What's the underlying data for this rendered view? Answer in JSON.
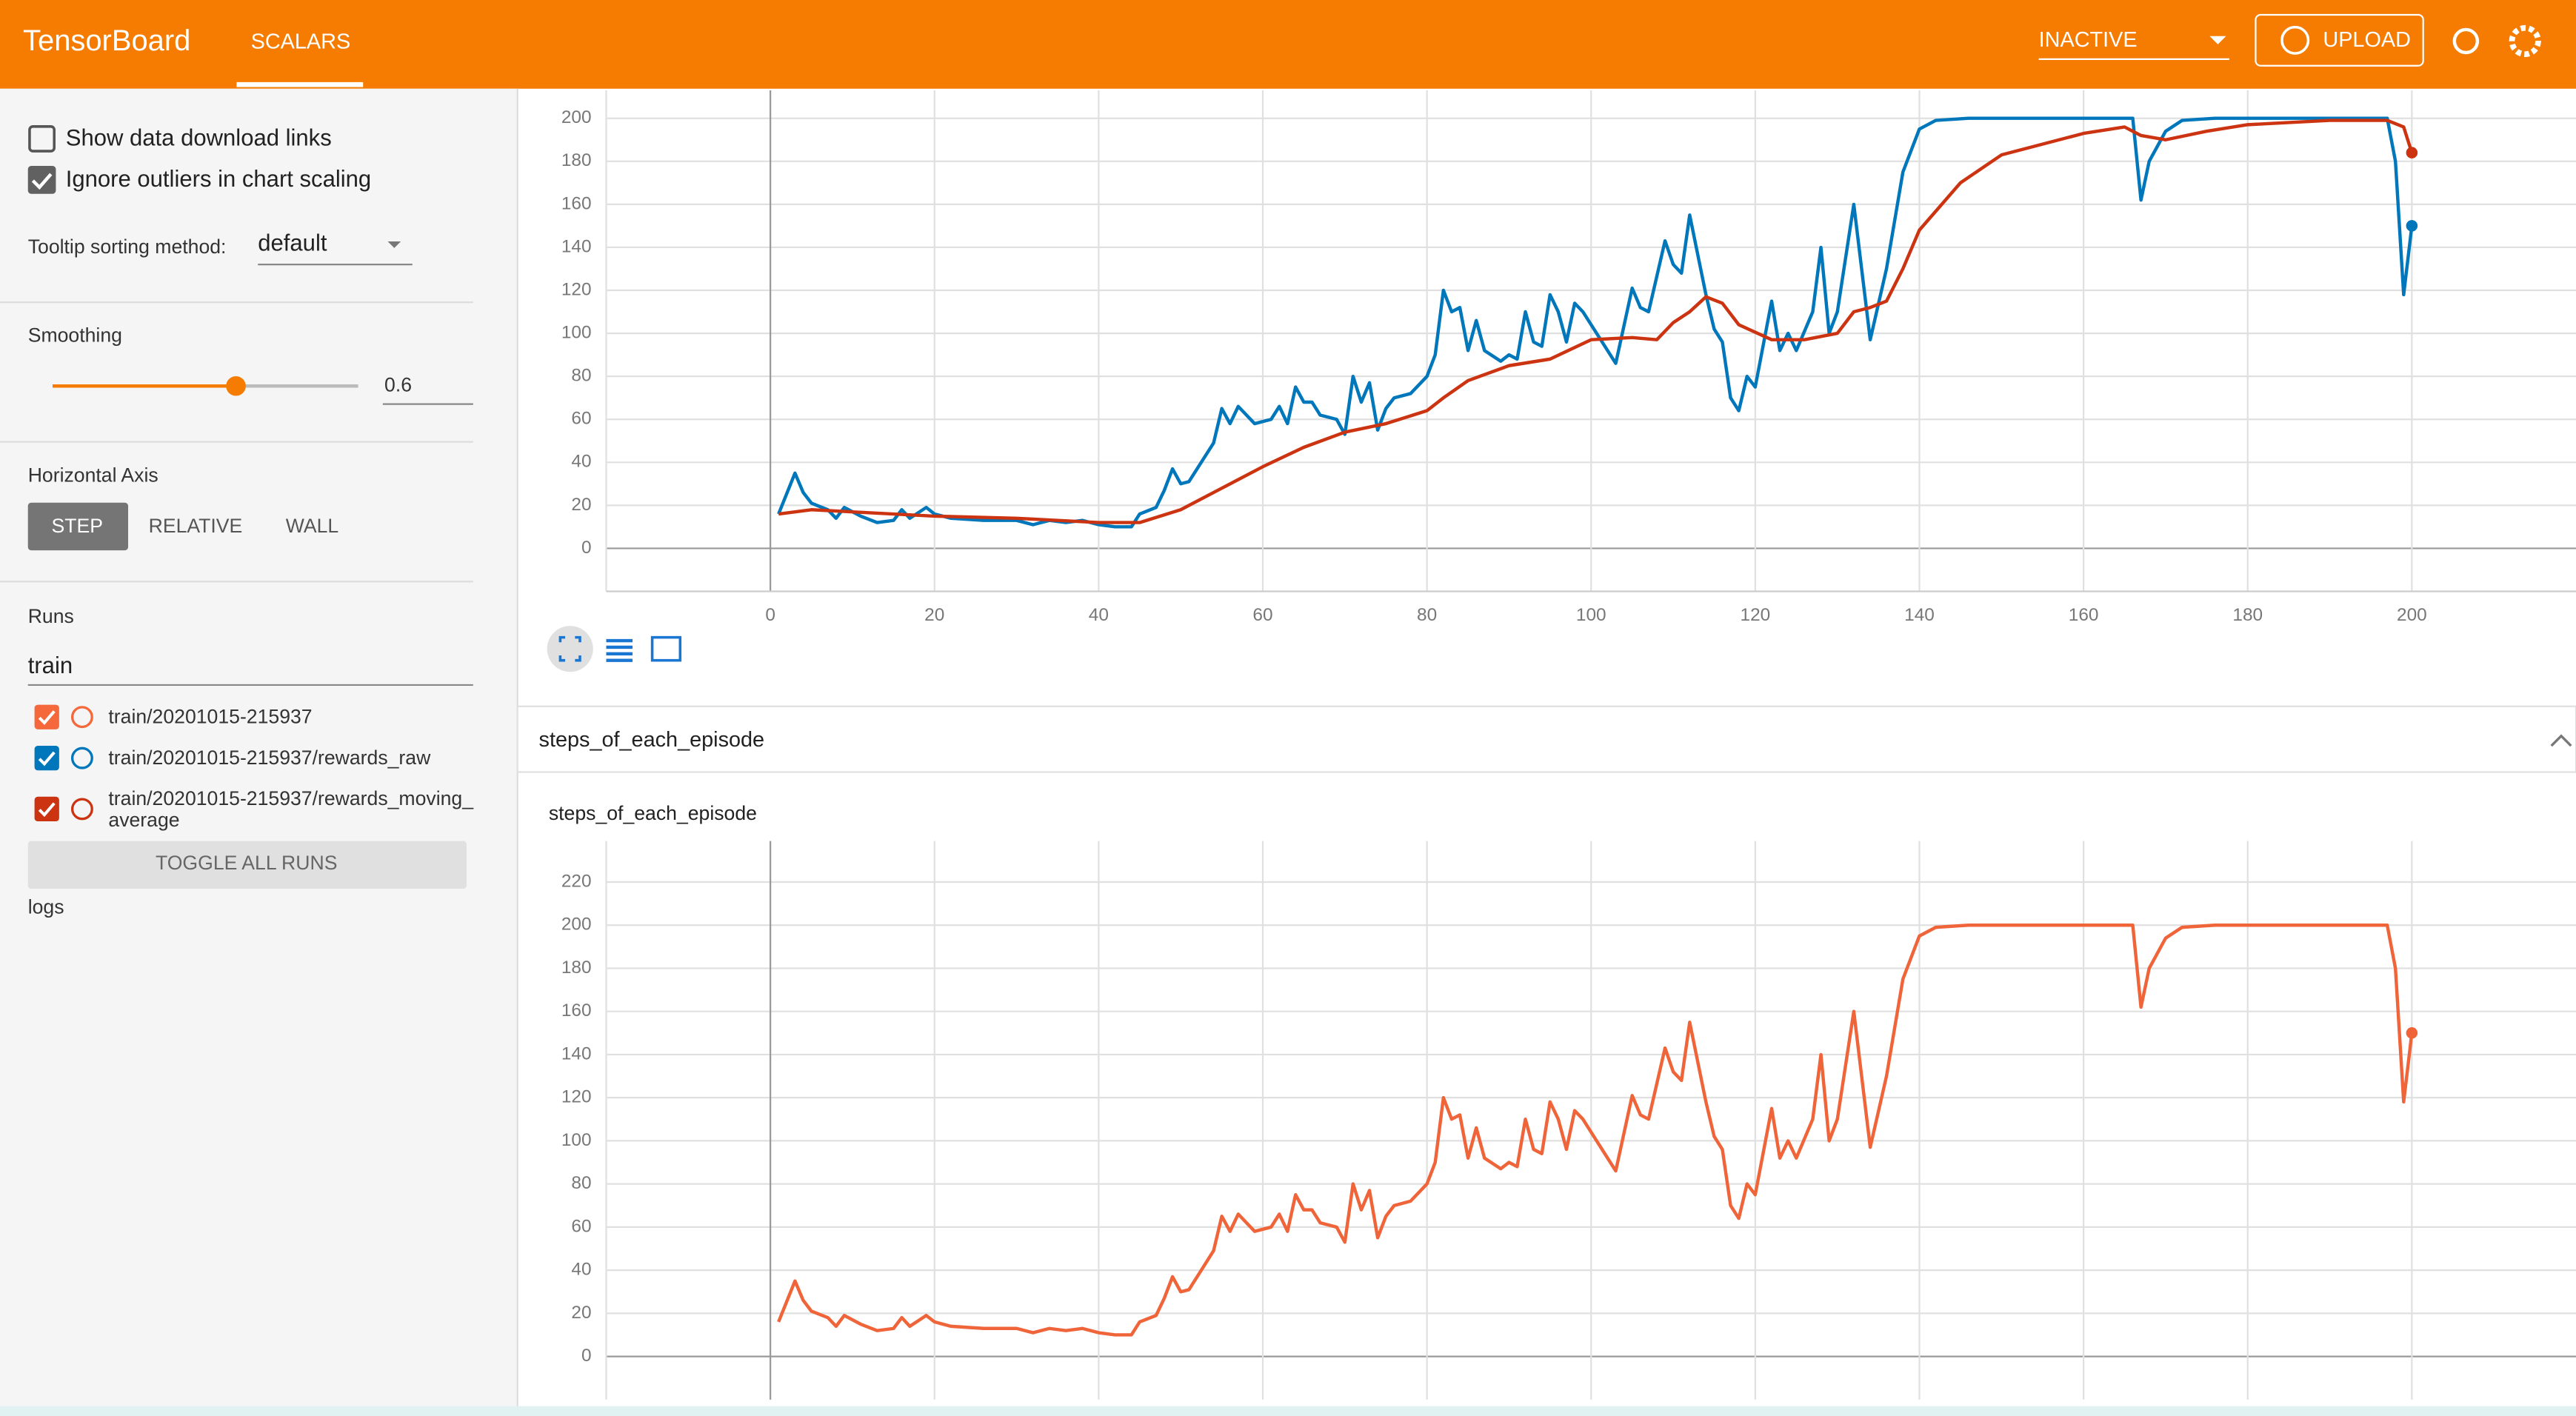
{
  "header": {
    "title": "TensorBoard",
    "tab": "SCALARS",
    "status": "INACTIVE",
    "upload": "UPLOAD"
  },
  "sidebar": {
    "show_download": "Show data download links",
    "ignore_outliers": "Ignore outliers in chart scaling",
    "tooltip_label": "Tooltip sorting method:",
    "tooltip_value": "default",
    "smoothing_label": "Smoothing",
    "smoothing_value": 0.6,
    "axis_label": "Horizontal Axis",
    "axis_options": [
      "STEP",
      "RELATIVE",
      "WALL"
    ],
    "runs_label": "Runs",
    "runs_filter": "train",
    "runs": [
      [
        "train/20201015-215937"
      ],
      [
        "train/20201015-215937/rewards_raw"
      ],
      [
        "train/20201015-215937/rewards_moving_",
        "average"
      ]
    ],
    "toggle": "TOGGLE ALL RUNS",
    "logs": "logs"
  },
  "section": {
    "title": "steps_of_each_episode"
  },
  "chart_data": [
    {
      "type": "line",
      "xlim": [
        -20,
        220
      ],
      "xticks": [
        0,
        20,
        40,
        60,
        80,
        100,
        120,
        140,
        160,
        180,
        200
      ],
      "ylim": [
        -20,
        213
      ],
      "yticks": [
        0,
        20,
        40,
        60,
        80,
        100,
        120,
        140,
        160,
        180,
        200
      ],
      "grid": true,
      "series": [
        {
          "color": "#0077bb",
          "x": [
            1,
            3,
            4,
            5,
            7,
            8,
            9,
            11,
            13,
            15,
            16,
            17,
            19,
            20,
            22,
            26,
            30,
            32,
            34,
            36,
            38,
            40,
            42,
            44,
            45,
            47,
            48,
            49,
            50,
            51,
            53,
            54,
            55,
            56,
            57,
            59,
            61,
            62,
            63,
            64,
            65,
            66,
            67,
            69,
            70,
            71,
            72,
            73,
            74,
            75,
            76,
            78,
            80,
            81,
            82,
            83,
            84,
            85,
            86,
            87,
            89,
            90,
            91,
            92,
            93,
            94,
            95,
            96,
            97,
            98,
            99,
            101,
            103,
            105,
            106,
            107,
            109,
            110,
            111,
            112,
            114,
            115,
            116,
            117,
            118,
            119,
            120,
            122,
            123,
            124,
            125,
            127,
            128,
            129,
            130,
            132,
            134,
            136,
            138,
            140,
            142,
            146,
            166,
            167,
            168,
            170,
            172,
            176,
            197,
            198,
            199,
            200
          ],
          "values": [
            16,
            35,
            26,
            21,
            18,
            14,
            19,
            15,
            12,
            13,
            18,
            14,
            19,
            16,
            14,
            13,
            13,
            11,
            13,
            12,
            13,
            11,
            10,
            10,
            16,
            19,
            27,
            37,
            30,
            31,
            43,
            49,
            65,
            58,
            66,
            58,
            60,
            66,
            58,
            75,
            68,
            68,
            62,
            60,
            53,
            80,
            68,
            77,
            55,
            65,
            70,
            72,
            80,
            90,
            120,
            110,
            112,
            92,
            106,
            92,
            87,
            90,
            88,
            110,
            96,
            94,
            118,
            110,
            96,
            114,
            110,
            98,
            86,
            121,
            112,
            110,
            143,
            132,
            128,
            155,
            118,
            102,
            96,
            70,
            64,
            80,
            75,
            115,
            92,
            100,
            92,
            110,
            140,
            100,
            110,
            160,
            97,
            130,
            175,
            195,
            199,
            200,
            200,
            162,
            180,
            194,
            199,
            200,
            200,
            180,
            118,
            150
          ]
        },
        {
          "color": "#cc3311",
          "x": [
            1,
            5,
            10,
            20,
            30,
            40,
            45,
            50,
            55,
            60,
            65,
            70,
            75,
            80,
            82,
            85,
            90,
            95,
            100,
            105,
            108,
            110,
            112,
            114,
            116,
            118,
            122,
            126,
            130,
            132,
            134,
            136,
            138,
            140,
            145,
            150,
            160,
            165,
            167,
            170,
            175,
            180,
            190,
            197,
            199,
            200
          ],
          "values": [
            16,
            18,
            17,
            15,
            14,
            12,
            12,
            18,
            28,
            38,
            47,
            54,
            58,
            64,
            70,
            78,
            85,
            88,
            97,
            98,
            97,
            105,
            110,
            117,
            114,
            104,
            97,
            97,
            100,
            110,
            112,
            115,
            130,
            148,
            170,
            183,
            193,
            196,
            192,
            190,
            194,
            197,
            199,
            199,
            196,
            184
          ]
        }
      ]
    },
    {
      "type": "line",
      "title": "steps_of_each_episode",
      "xlim": [
        -20,
        220
      ],
      "xticks": [
        0,
        20,
        40,
        60,
        80,
        100,
        120,
        140,
        160,
        180,
        200
      ],
      "ylim": [
        -20,
        239
      ],
      "yticks": [
        0,
        20,
        40,
        60,
        80,
        100,
        120,
        140,
        160,
        180,
        200,
        220
      ],
      "grid": true,
      "series": [
        {
          "color": "#f0643a",
          "x": [
            1,
            3,
            4,
            5,
            7,
            8,
            9,
            11,
            13,
            15,
            16,
            17,
            19,
            20,
            22,
            26,
            30,
            32,
            34,
            36,
            38,
            40,
            42,
            44,
            45,
            47,
            48,
            49,
            50,
            51,
            53,
            54,
            55,
            56,
            57,
            59,
            61,
            62,
            63,
            64,
            65,
            66,
            67,
            69,
            70,
            71,
            72,
            73,
            74,
            75,
            76,
            78,
            80,
            81,
            82,
            83,
            84,
            85,
            86,
            87,
            89,
            90,
            91,
            92,
            93,
            94,
            95,
            96,
            97,
            98,
            99,
            101,
            103,
            105,
            106,
            107,
            109,
            110,
            111,
            112,
            114,
            115,
            116,
            117,
            118,
            119,
            120,
            122,
            123,
            124,
            125,
            127,
            128,
            129,
            130,
            132,
            134,
            136,
            138,
            140,
            142,
            146,
            166,
            167,
            168,
            170,
            172,
            176,
            197,
            198,
            199,
            200
          ],
          "values": [
            16,
            35,
            26,
            21,
            18,
            14,
            19,
            15,
            12,
            13,
            18,
            14,
            19,
            16,
            14,
            13,
            13,
            11,
            13,
            12,
            13,
            11,
            10,
            10,
            16,
            19,
            27,
            37,
            30,
            31,
            43,
            49,
            65,
            58,
            66,
            58,
            60,
            66,
            58,
            75,
            68,
            68,
            62,
            60,
            53,
            80,
            68,
            77,
            55,
            65,
            70,
            72,
            80,
            90,
            120,
            110,
            112,
            92,
            106,
            92,
            87,
            90,
            88,
            110,
            96,
            94,
            118,
            110,
            96,
            114,
            110,
            98,
            86,
            121,
            112,
            110,
            143,
            132,
            128,
            155,
            118,
            102,
            96,
            70,
            64,
            80,
            75,
            115,
            92,
            100,
            92,
            110,
            140,
            100,
            110,
            160,
            97,
            130,
            175,
            195,
            199,
            200,
            200,
            162,
            180,
            194,
            199,
            200,
            200,
            180,
            118,
            150
          ]
        }
      ]
    }
  ]
}
